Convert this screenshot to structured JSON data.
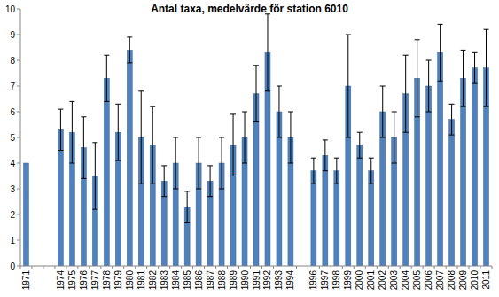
{
  "chart_data": {
    "type": "bar",
    "title": "Antal taxa, medelvärde för station 6010",
    "categories": [
      "1971",
      null,
      null,
      "1974",
      "1975",
      "1976",
      "1977",
      "1978",
      "1979",
      "1980",
      "1981",
      "1982",
      "1983",
      "1984",
      "1985",
      "1986",
      "1987",
      "1988",
      "1989",
      "1990",
      "1991",
      "1992",
      "1993",
      "1994",
      null,
      "1996",
      "1997",
      "1998",
      "1999",
      "2000",
      "2001",
      "2002",
      "2003",
      "2004",
      "2005",
      "2006",
      "2007",
      "2008",
      "2009",
      "2010",
      "2011"
    ],
    "values": [
      4.0,
      null,
      null,
      5.3,
      5.2,
      4.6,
      3.5,
      7.3,
      5.2,
      8.4,
      5.0,
      4.7,
      3.3,
      4.0,
      2.3,
      4.0,
      3.3,
      4.0,
      4.7,
      5.0,
      6.7,
      8.3,
      6.0,
      5.0,
      null,
      3.7,
      4.3,
      3.7,
      7.0,
      4.7,
      3.7,
      6.0,
      5.0,
      6.7,
      7.3,
      7.0,
      8.3,
      5.7,
      7.3,
      7.7,
      7.7
    ],
    "errors": [
      null,
      null,
      null,
      0.8,
      1.2,
      1.2,
      1.3,
      0.9,
      1.1,
      0.5,
      1.8,
      1.5,
      0.6,
      1.0,
      0.6,
      1.0,
      0.6,
      1.0,
      1.2,
      1.0,
      1.1,
      1.5,
      1.0,
      1.0,
      null,
      0.5,
      0.6,
      0.5,
      2.0,
      0.5,
      0.5,
      1.0,
      1.0,
      1.5,
      1.5,
      1.0,
      1.1,
      0.6,
      1.1,
      0.6,
      1.5
    ],
    "color": "#4f81bd",
    "ylim": [
      0,
      10
    ],
    "yticks": [
      0,
      1,
      2,
      3,
      4,
      5,
      6,
      7,
      8,
      9,
      10
    ],
    "grid": false
  }
}
